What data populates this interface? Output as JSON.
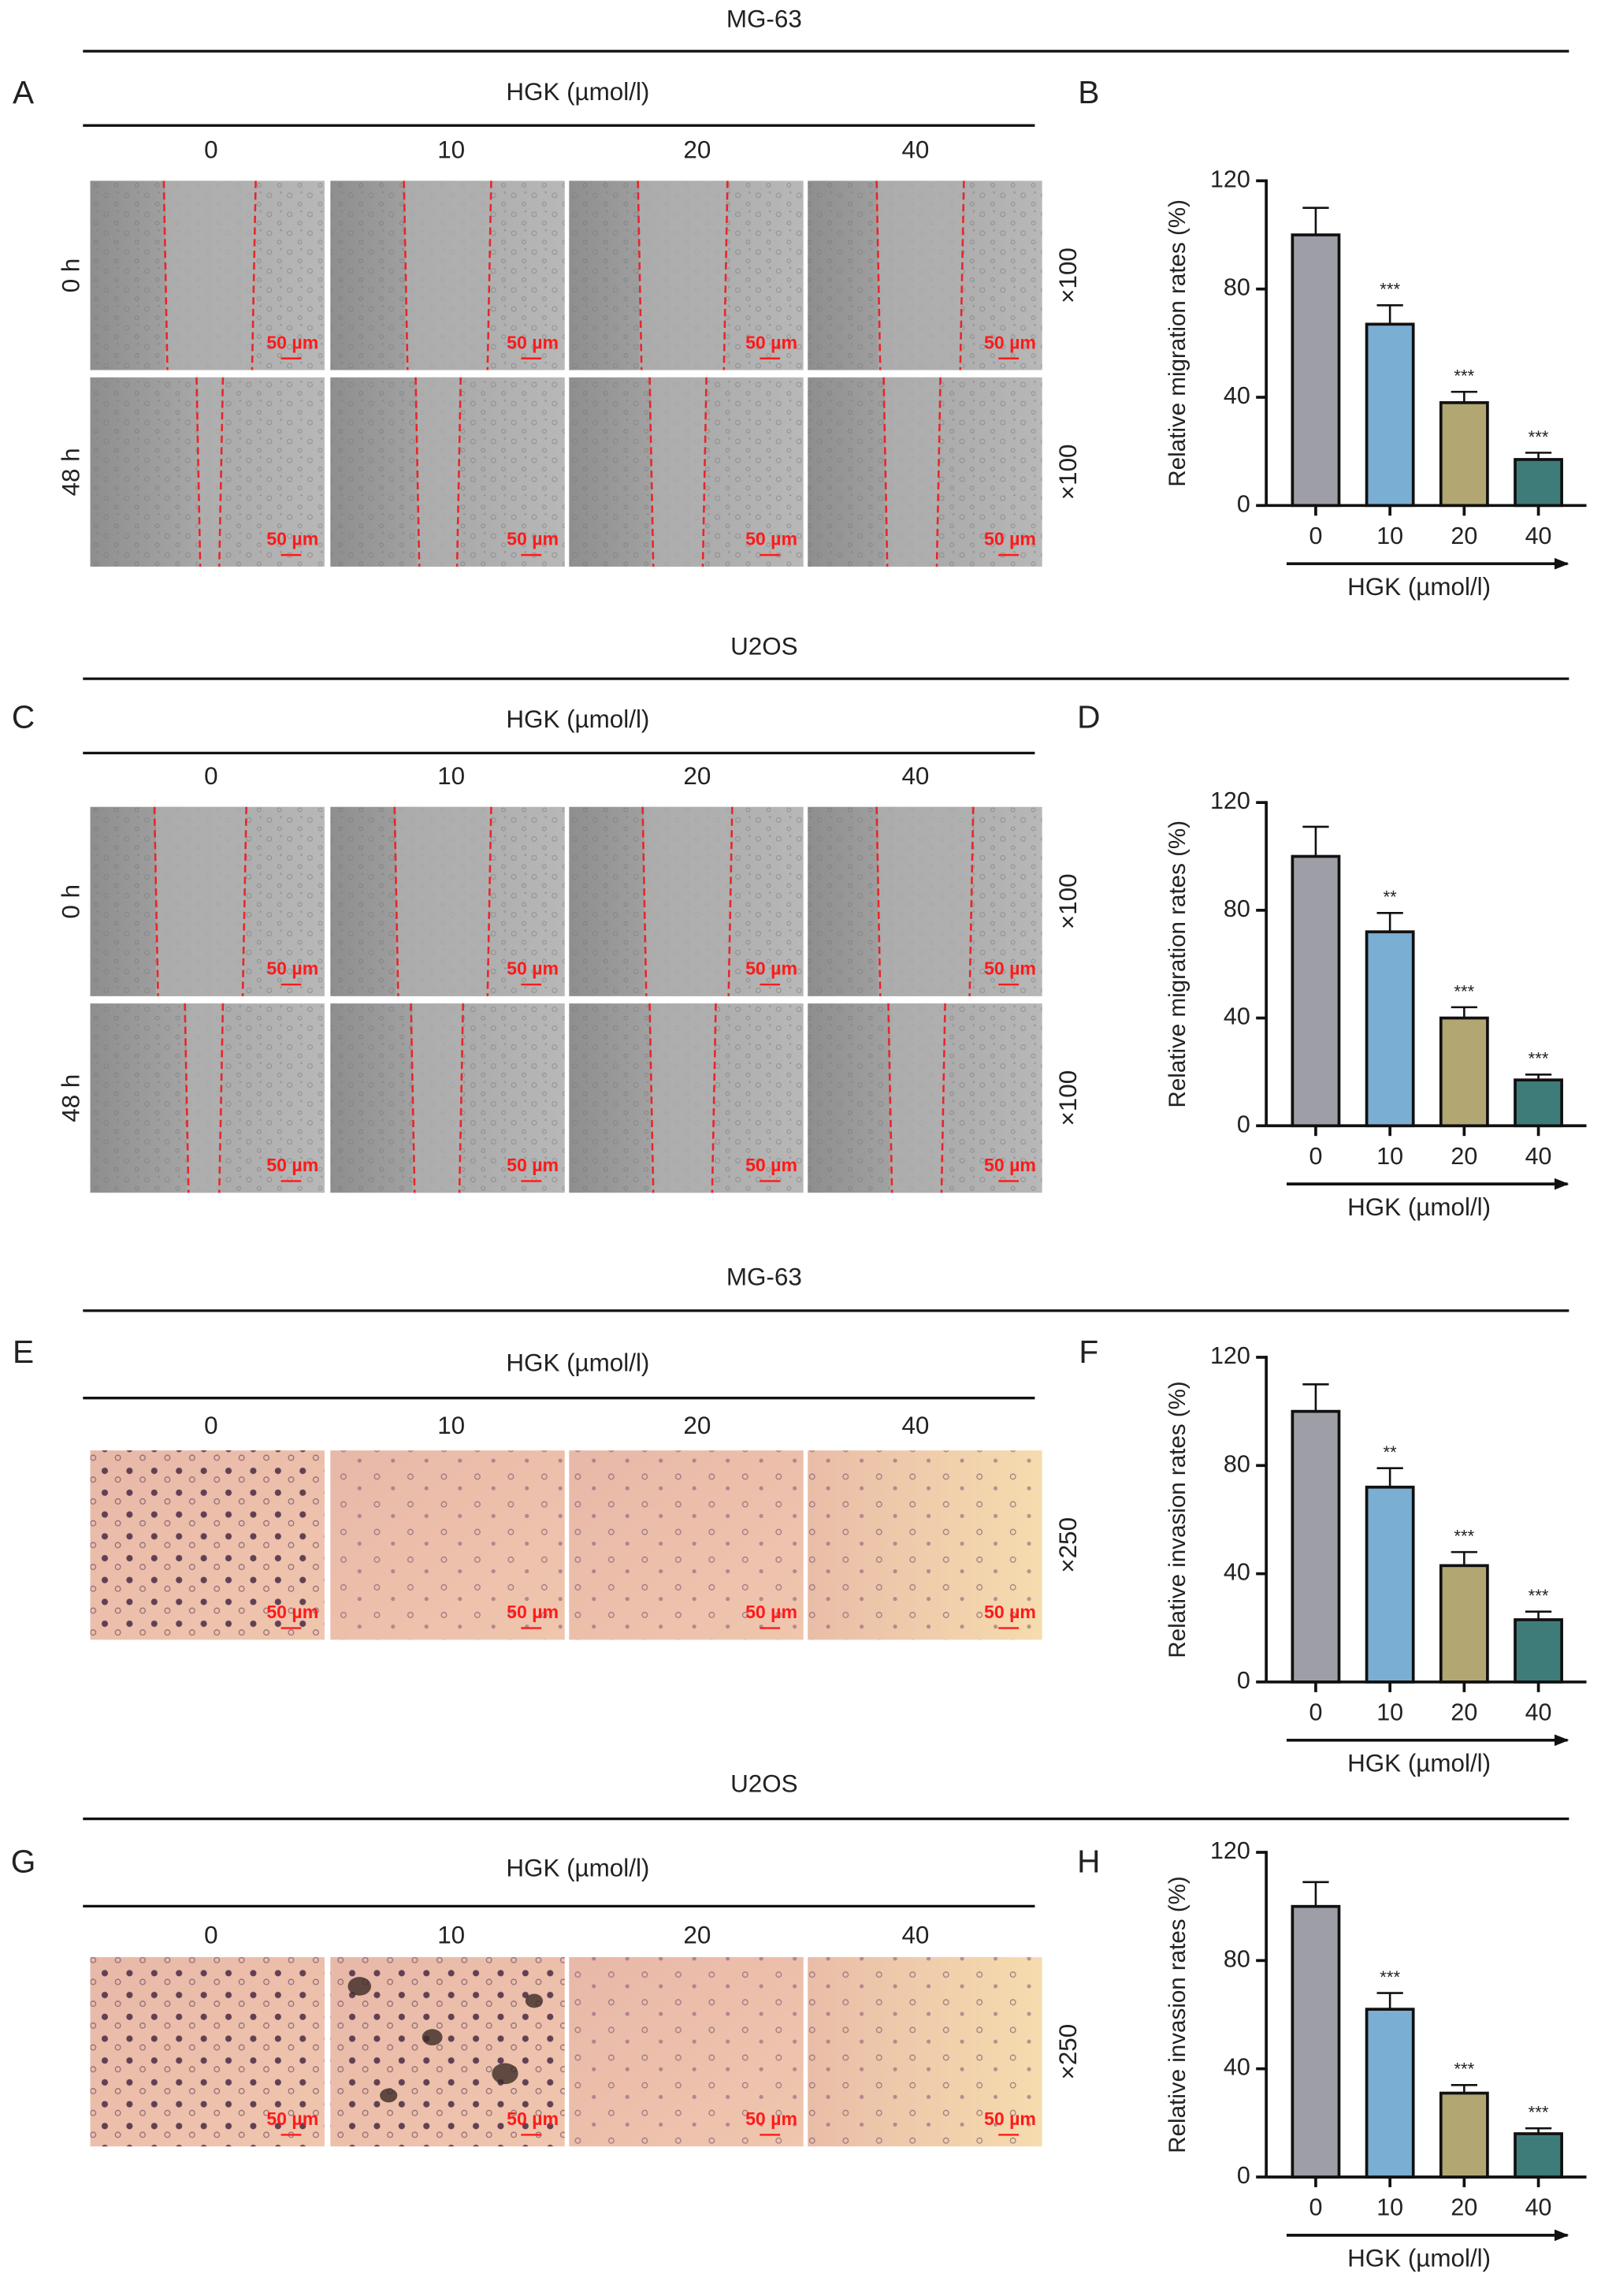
{
  "figure": {
    "sections": [
      {
        "cell_line": "MG-63",
        "image_panel": "A",
        "chart_panel": "B",
        "assay": "migration",
        "treatment_label": "HGK (µmol/l)",
        "doses": [
          "0",
          "10",
          "20",
          "40"
        ],
        "row_labels": [
          "0 h",
          "48 h"
        ],
        "magnification": "×100",
        "scale_bar": "50 µm"
      },
      {
        "cell_line": "U2OS",
        "image_panel": "C",
        "chart_panel": "D",
        "assay": "migration",
        "treatment_label": "HGK (µmol/l)",
        "doses": [
          "0",
          "10",
          "20",
          "40"
        ],
        "row_labels": [
          "0 h",
          "48 h"
        ],
        "magnification": "×100",
        "scale_bar": "50 µm"
      },
      {
        "cell_line": "MG-63",
        "image_panel": "E",
        "chart_panel": "F",
        "assay": "invasion",
        "treatment_label": "HGK (µmol/l)",
        "doses": [
          "0",
          "10",
          "20",
          "40"
        ],
        "row_labels": [],
        "magnification": "×250",
        "scale_bar": "50 µm"
      },
      {
        "cell_line": "U2OS",
        "image_panel": "G",
        "chart_panel": "H",
        "assay": "invasion",
        "treatment_label": "HGK (µmol/l)",
        "doses": [
          "0",
          "10",
          "20",
          "40"
        ],
        "row_labels": [],
        "magnification": "×250",
        "scale_bar": "50 µm"
      }
    ]
  },
  "chart_data": [
    {
      "panel": "B",
      "type": "bar",
      "categories": [
        "0",
        "10",
        "20",
        "40"
      ],
      "values": [
        100,
        67,
        38,
        17
      ],
      "errors": [
        10,
        7,
        4,
        2.5
      ],
      "significance": [
        "",
        "***",
        "***",
        "***"
      ],
      "ylabel": "Relative migration rates (%)",
      "xlabel": "HGK (µmol/l)",
      "ylim": [
        0,
        120
      ],
      "yticks": [
        "0",
        "40",
        "80",
        "120"
      ],
      "grid": false,
      "colors": [
        "#9e9ea6",
        "#7aaed2",
        "#b2a772",
        "#3e7c7a"
      ]
    },
    {
      "panel": "D",
      "type": "bar",
      "categories": [
        "0",
        "10",
        "20",
        "40"
      ],
      "values": [
        100,
        72,
        40,
        17
      ],
      "errors": [
        11,
        7,
        4,
        2
      ],
      "significance": [
        "",
        "**",
        "***",
        "***"
      ],
      "ylabel": "Relative migration rates (%)",
      "xlabel": "HGK (µmol/l)",
      "ylim": [
        0,
        120
      ],
      "yticks": [
        "0",
        "40",
        "80",
        "120"
      ],
      "grid": false,
      "colors": [
        "#9e9ea6",
        "#7aaed2",
        "#b2a772",
        "#3e7c7a"
      ]
    },
    {
      "panel": "F",
      "type": "bar",
      "categories": [
        "0",
        "10",
        "20",
        "40"
      ],
      "values": [
        100,
        72,
        43,
        23
      ],
      "errors": [
        10,
        7,
        5,
        3
      ],
      "significance": [
        "",
        "**",
        "***",
        "***"
      ],
      "ylabel": "Relative invasion rates (%)",
      "xlabel": "HGK (µmol/l)",
      "ylim": [
        0,
        120
      ],
      "yticks": [
        "0",
        "40",
        "80",
        "120"
      ],
      "grid": false,
      "colors": [
        "#9e9ea6",
        "#7aaed2",
        "#b2a772",
        "#3e7c7a"
      ]
    },
    {
      "panel": "H",
      "type": "bar",
      "categories": [
        "0",
        "10",
        "20",
        "40"
      ],
      "values": [
        100,
        62,
        31,
        16
      ],
      "errors": [
        9,
        6,
        3,
        2
      ],
      "significance": [
        "",
        "***",
        "***",
        "***"
      ],
      "ylabel": "Relative invasion rates (%)",
      "xlabel": "HGK (µmol/l)",
      "ylim": [
        0,
        120
      ],
      "yticks": [
        "0",
        "40",
        "80",
        "120"
      ],
      "grid": false,
      "colors": [
        "#9e9ea6",
        "#7aaed2",
        "#b2a772",
        "#3e7c7a"
      ]
    }
  ]
}
